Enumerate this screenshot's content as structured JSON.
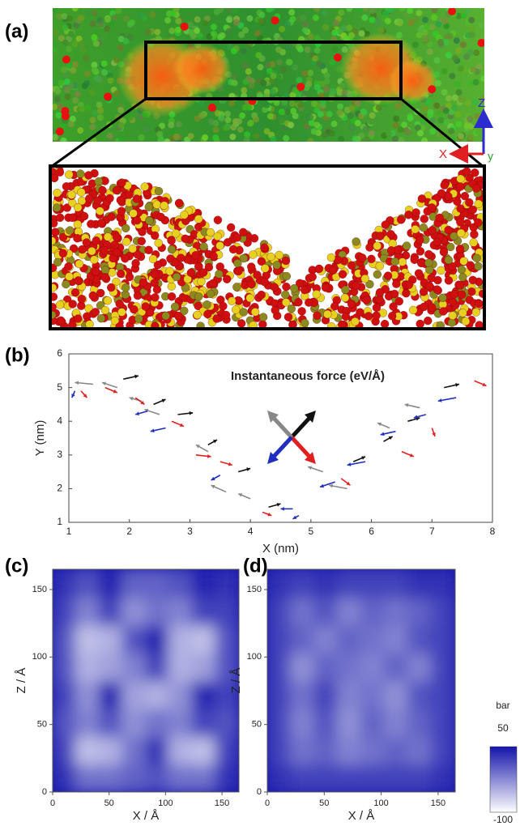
{
  "panel_labels": [
    "(a)",
    "(b)",
    "(c)",
    "(d)"
  ],
  "axis_triad": {
    "z": "Z",
    "x": "X",
    "y": "y"
  },
  "colorbar": {
    "label": "bar",
    "lim": [
      -100,
      50
    ],
    "ticks": [
      50,
      -100
    ]
  },
  "chart_data": [
    {
      "type": "vector",
      "title": "Instantaneous force (eV/Å)",
      "x_label": "X (nm)",
      "y_label": "Y (nm)",
      "xlim": [
        1,
        8
      ],
      "ylim": [
        1,
        6
      ],
      "xticks": [
        1,
        2,
        3,
        4,
        5,
        6,
        7,
        8
      ],
      "yticks": [
        1,
        2,
        3,
        4,
        5,
        6
      ],
      "series": [
        {
          "color": "#111111",
          "x": [
            1.9,
            2.4,
            2.8,
            3.3,
            3.8,
            4.3,
            5.7,
            6.2,
            6.6,
            7.2
          ],
          "y": [
            5.25,
            4.5,
            4.2,
            3.3,
            2.5,
            1.45,
            2.8,
            3.4,
            4.0,
            5.0
          ],
          "dx": [
            0.25,
            0.2,
            0.25,
            0.15,
            0.2,
            0.2,
            0.2,
            0.15,
            0.2,
            0.25
          ],
          "dy": [
            0.1,
            0.15,
            0.05,
            0.15,
            0.1,
            0.1,
            0.15,
            0.15,
            0.1,
            0.1
          ]
        },
        {
          "color": "#888888",
          "x": [
            1.4,
            1.8,
            2.2,
            2.5,
            3.3,
            3.6,
            4.0,
            5.2,
            5.6,
            6.3,
            6.8
          ],
          "y": [
            5.1,
            5.0,
            4.6,
            4.2,
            3.1,
            1.9,
            1.7,
            2.5,
            2.0,
            3.8,
            4.4
          ],
          "dx": [
            -0.3,
            -0.25,
            -0.2,
            -0.25,
            -0.2,
            -0.25,
            -0.2,
            -0.25,
            -0.3,
            -0.2,
            -0.25
          ],
          "dy": [
            0.05,
            0.15,
            0.1,
            0.15,
            0.2,
            0.2,
            0.15,
            0.15,
            0.1,
            0.15,
            0.1
          ]
        },
        {
          "color": "#e02020",
          "x": [
            1.2,
            1.6,
            2.1,
            2.7,
            3.1,
            3.5,
            4.2,
            5.5,
            6.5,
            7.0,
            7.7
          ],
          "y": [
            4.9,
            5.0,
            4.7,
            4.0,
            3.0,
            2.8,
            1.3,
            2.3,
            3.1,
            3.8,
            5.2
          ],
          "dx": [
            0.1,
            0.2,
            0.15,
            0.2,
            0.25,
            0.2,
            0.15,
            0.15,
            0.2,
            0.05,
            0.2
          ],
          "dy": [
            -0.2,
            -0.15,
            -0.2,
            -0.15,
            -0.05,
            -0.1,
            -0.1,
            -0.2,
            -0.15,
            -0.25,
            -0.15
          ]
        },
        {
          "color": "#1f2fc0",
          "x": [
            1.1,
            2.3,
            2.6,
            3.5,
            4.7,
            4.8,
            5.4,
            5.9,
            6.4,
            6.9,
            7.4
          ],
          "y": [
            4.9,
            4.3,
            3.8,
            2.4,
            1.4,
            1.2,
            2.2,
            2.8,
            3.7,
            4.2,
            4.7
          ],
          "dx": [
            -0.05,
            -0.2,
            -0.25,
            -0.15,
            -0.2,
            -0.1,
            -0.25,
            -0.3,
            -0.25,
            -0.2,
            -0.3
          ],
          "dy": [
            -0.2,
            -0.1,
            -0.1,
            -0.15,
            0.0,
            -0.1,
            -0.15,
            -0.1,
            -0.1,
            -0.1,
            -0.1
          ]
        }
      ]
    },
    {
      "type": "heatmap",
      "x_label": "X / Å",
      "y_label": "Z / Å",
      "xlim": [
        0,
        165
      ],
      "ylim": [
        0,
        165
      ],
      "xticks": [
        0,
        50,
        100,
        150
      ],
      "yticks": [
        0,
        50,
        100,
        150
      ],
      "z": [
        [
          30,
          -10,
          -10,
          0,
          10,
          -10,
          -10,
          30
        ],
        [
          20,
          -60,
          -50,
          -10,
          30,
          -50,
          -60,
          20
        ],
        [
          10,
          -20,
          10,
          -30,
          -10,
          -20,
          20,
          10
        ],
        [
          20,
          -30,
          40,
          -40,
          -50,
          -30,
          40,
          20
        ],
        [
          10,
          -50,
          -40,
          -20,
          20,
          -50,
          -40,
          10
        ],
        [
          10,
          -60,
          -50,
          10,
          40,
          -50,
          -60,
          10
        ],
        [
          20,
          -20,
          20,
          -30,
          -10,
          -20,
          20,
          20
        ],
        [
          30,
          10,
          40,
          0,
          0,
          10,
          40,
          30
        ]
      ]
    },
    {
      "type": "heatmap",
      "x_label": "X / Å",
      "y_label": "Z / Å",
      "xlim": [
        0,
        165
      ],
      "ylim": [
        0,
        165
      ],
      "xticks": [
        0,
        50,
        100,
        150
      ],
      "yticks": [
        0,
        50,
        100,
        150
      ],
      "z": [
        [
          30,
          20,
          20,
          20,
          20,
          20,
          20,
          30
        ],
        [
          20,
          -10,
          0,
          -20,
          -10,
          0,
          -10,
          20
        ],
        [
          20,
          -20,
          10,
          -30,
          0,
          -20,
          0,
          20
        ],
        [
          20,
          -10,
          20,
          -20,
          -10,
          -30,
          10,
          20
        ],
        [
          20,
          -30,
          0,
          -10,
          -20,
          0,
          -20,
          20
        ],
        [
          20,
          0,
          -20,
          0,
          -10,
          -20,
          10,
          20
        ],
        [
          20,
          -10,
          10,
          -20,
          0,
          -10,
          0,
          20
        ],
        [
          30,
          20,
          30,
          20,
          20,
          20,
          30,
          30
        ]
      ]
    }
  ]
}
